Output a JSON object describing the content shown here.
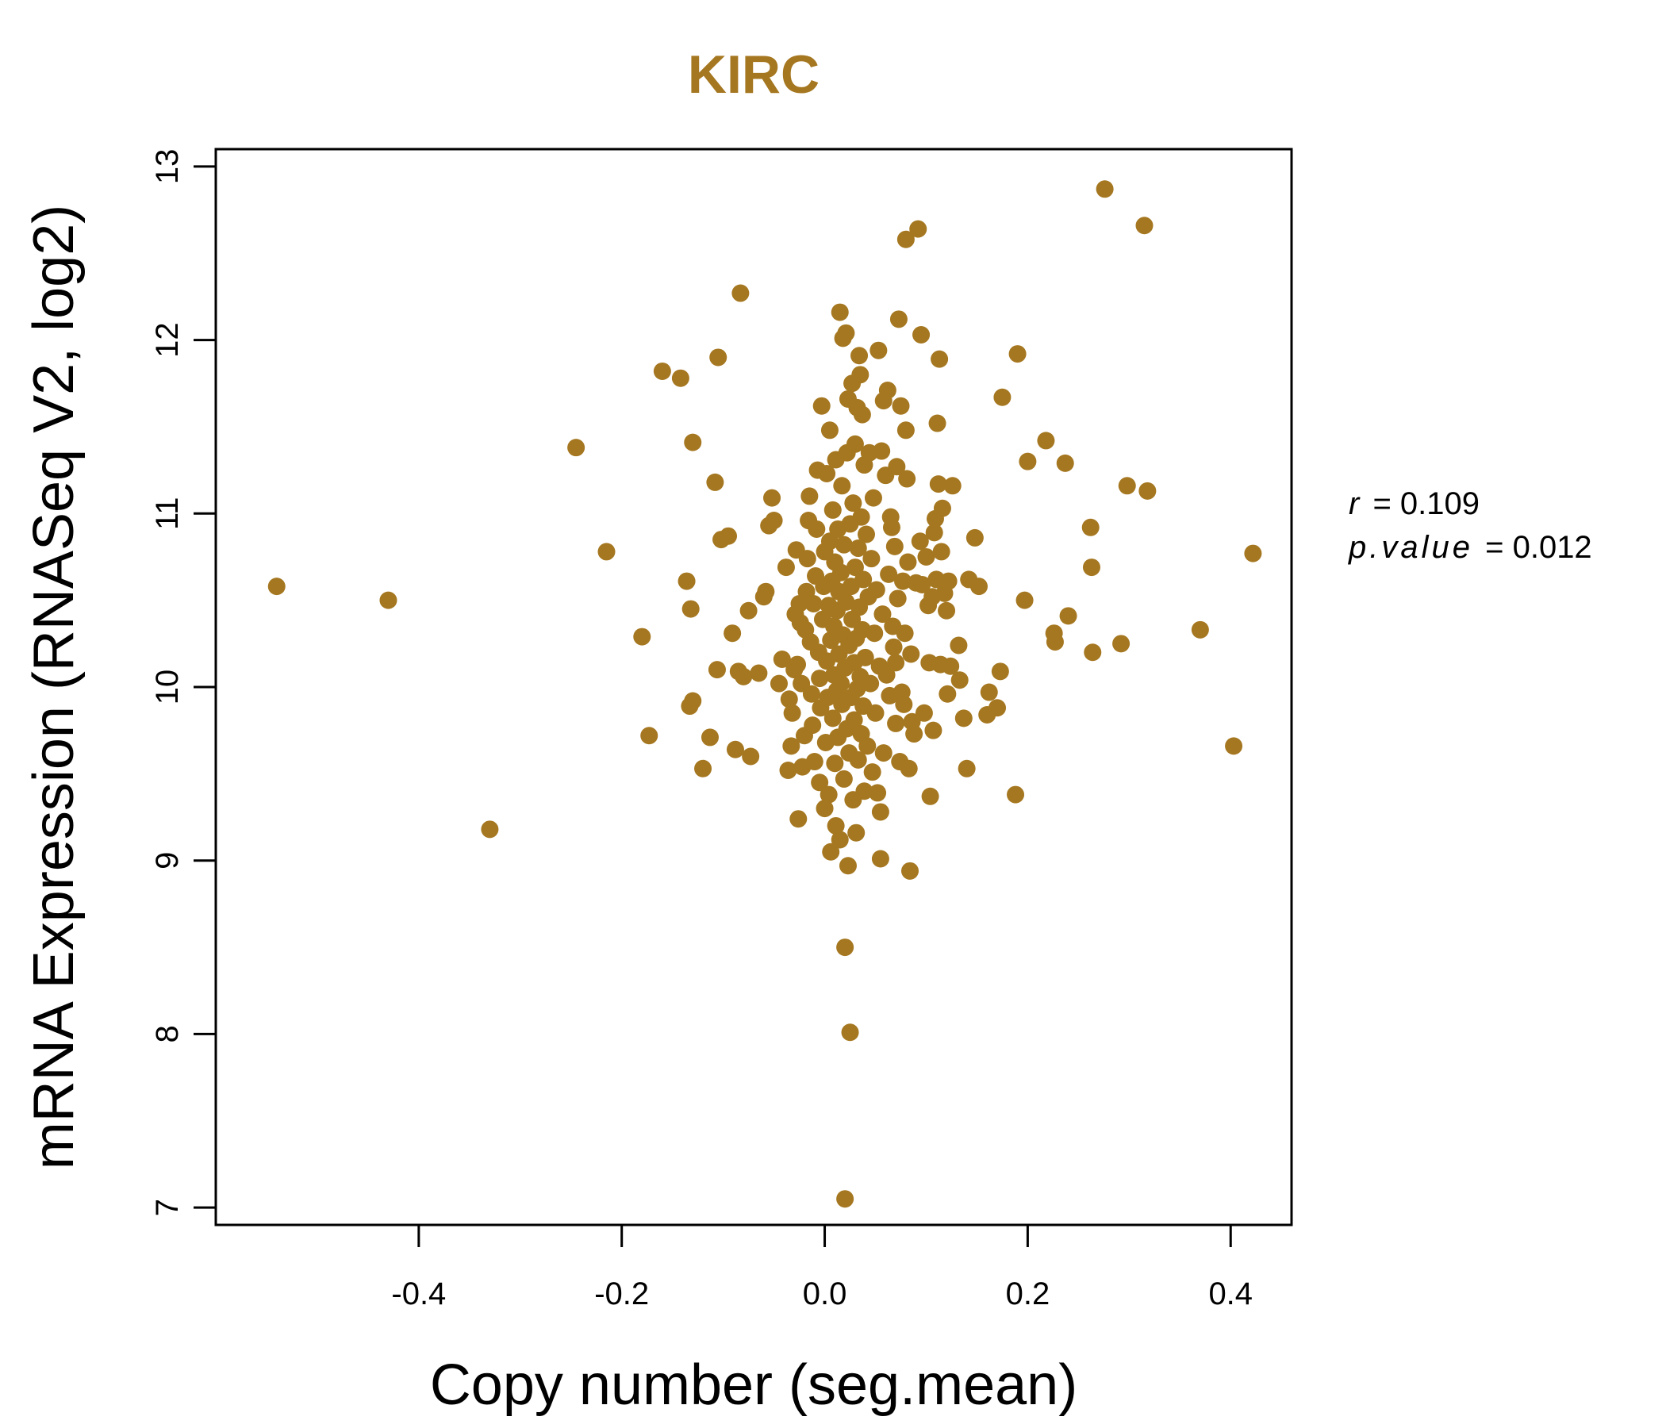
{
  "chart_data": {
    "type": "scatter",
    "title": "KIRC",
    "xlabel": "Copy number (seg.mean)",
    "ylabel": "mRNA Expression (RNASeq V2, log2)",
    "xlim": [
      -0.6,
      0.46
    ],
    "ylim": [
      6.9,
      13.1
    ],
    "x_ticks": [
      -0.4,
      -0.2,
      0.0,
      0.2,
      0.4
    ],
    "x_tick_labels": [
      "-0.4",
      "-0.2",
      "0.0",
      "0.2",
      "0.4"
    ],
    "y_ticks": [
      7,
      8,
      9,
      10,
      11,
      12,
      13
    ],
    "y_tick_labels": [
      "7",
      "8",
      "9",
      "10",
      "11",
      "12",
      "13"
    ],
    "grid": false,
    "point_color": "#A57720",
    "title_color": "#A57720",
    "stats": {
      "r_label": "r",
      "r_value": "= 0.109",
      "p_label": "p.value",
      "p_value": "= 0.012"
    },
    "points": [
      [
        -0.54,
        10.58
      ],
      [
        -0.43,
        10.5
      ],
      [
        -0.33,
        9.18
      ],
      [
        -0.245,
        11.38
      ],
      [
        -0.215,
        10.78
      ],
      [
        -0.18,
        10.29
      ],
      [
        -0.173,
        9.72
      ],
      [
        -0.16,
        11.82
      ],
      [
        -0.142,
        11.78
      ],
      [
        -0.136,
        10.61
      ],
      [
        -0.133,
        9.89
      ],
      [
        -0.132,
        10.45
      ],
      [
        -0.13,
        9.92
      ],
      [
        -0.13,
        11.41
      ],
      [
        -0.12,
        9.53
      ],
      [
        -0.113,
        9.71
      ],
      [
        -0.108,
        11.18
      ],
      [
        -0.106,
        10.1
      ],
      [
        -0.105,
        11.9
      ],
      [
        -0.102,
        10.85
      ],
      [
        -0.095,
        10.87
      ],
      [
        -0.091,
        10.31
      ],
      [
        -0.088,
        9.64
      ],
      [
        -0.085,
        10.09
      ],
      [
        -0.083,
        12.27
      ],
      [
        -0.08,
        10.06
      ],
      [
        -0.075,
        10.44
      ],
      [
        -0.073,
        9.6
      ],
      [
        -0.065,
        10.08
      ],
      [
        -0.06,
        10.52
      ],
      [
        -0.058,
        10.55
      ],
      [
        -0.055,
        10.93
      ],
      [
        -0.052,
        11.09
      ],
      [
        -0.05,
        10.96
      ],
      [
        -0.045,
        10.02
      ],
      [
        -0.042,
        10.16
      ],
      [
        -0.038,
        10.69
      ],
      [
        -0.036,
        9.52
      ],
      [
        -0.035,
        9.93
      ],
      [
        -0.032,
        9.85
      ],
      [
        -0.033,
        9.66
      ],
      [
        -0.03,
        10.1
      ],
      [
        -0.029,
        10.42
      ],
      [
        -0.028,
        10.79
      ],
      [
        -0.027,
        10.13
      ],
      [
        -0.026,
        9.24
      ],
      [
        -0.025,
        10.48
      ],
      [
        -0.024,
        10.37
      ],
      [
        -0.023,
        10.02
      ],
      [
        -0.022,
        9.54
      ],
      [
        -0.02,
        9.72
      ],
      [
        -0.019,
        10.33
      ],
      [
        -0.018,
        10.55
      ],
      [
        -0.017,
        10.74
      ],
      [
        -0.016,
        10.96
      ],
      [
        -0.015,
        11.1
      ],
      [
        -0.014,
        10.26
      ],
      [
        -0.013,
        9.96
      ],
      [
        -0.012,
        9.78
      ],
      [
        -0.011,
        10.48
      ],
      [
        -0.01,
        9.57
      ],
      [
        -0.009,
        10.64
      ],
      [
        -0.008,
        10.91
      ],
      [
        -0.007,
        11.25
      ],
      [
        -0.006,
        10.2
      ],
      [
        -0.005,
        9.45
      ],
      [
        -0.005,
        10.05
      ],
      [
        -0.004,
        9.88
      ],
      [
        -0.003,
        11.62
      ],
      [
        -0.002,
        10.39
      ],
      [
        -0.001,
        10.58
      ],
      [
        0.0,
        9.3
      ],
      [
        0.0,
        10.78
      ],
      [
        0.001,
        9.68
      ],
      [
        0.002,
        11.23
      ],
      [
        0.002,
        10.15
      ],
      [
        0.003,
        9.94
      ],
      [
        0.004,
        10.47
      ],
      [
        0.004,
        9.38
      ],
      [
        0.005,
        11.48
      ],
      [
        0.005,
        10.84
      ],
      [
        0.006,
        10.27
      ],
      [
        0.006,
        9.05
      ],
      [
        0.007,
        10.61
      ],
      [
        0.008,
        9.82
      ],
      [
        0.008,
        11.02
      ],
      [
        0.009,
        10.07
      ],
      [
        0.009,
        10.35
      ],
      [
        0.01,
        9.56
      ],
      [
        0.01,
        10.72
      ],
      [
        0.011,
        9.2
      ],
      [
        0.011,
        11.31
      ],
      [
        0.012,
        10.44
      ],
      [
        0.012,
        9.98
      ],
      [
        0.013,
        10.91
      ],
      [
        0.013,
        9.71
      ],
      [
        0.014,
        10.19
      ],
      [
        0.014,
        10.55
      ],
      [
        0.015,
        12.16
      ],
      [
        0.015,
        9.12
      ],
      [
        0.016,
        10.02
      ],
      [
        0.016,
        10.66
      ],
      [
        0.017,
        9.9
      ],
      [
        0.017,
        11.16
      ],
      [
        0.018,
        12.01
      ],
      [
        0.018,
        10.3
      ],
      [
        0.019,
        10.82
      ],
      [
        0.019,
        9.47
      ],
      [
        0.02,
        8.5
      ],
      [
        0.02,
        7.05
      ],
      [
        0.02,
        10.11
      ],
      [
        0.021,
        12.04
      ],
      [
        0.021,
        10.49
      ],
      [
        0.022,
        9.76
      ],
      [
        0.022,
        11.35
      ],
      [
        0.023,
        8.97
      ],
      [
        0.023,
        11.66
      ],
      [
        0.024,
        10.24
      ],
      [
        0.024,
        9.62
      ],
      [
        0.025,
        10.94
      ],
      [
        0.025,
        8.01
      ],
      [
        0.026,
        10.58
      ],
      [
        0.026,
        9.94
      ],
      [
        0.027,
        11.75
      ],
      [
        0.027,
        10.39
      ],
      [
        0.028,
        9.35
      ],
      [
        0.028,
        11.06
      ],
      [
        0.029,
        10.14
      ],
      [
        0.029,
        9.81
      ],
      [
        0.03,
        11.4
      ],
      [
        0.03,
        10.69
      ],
      [
        0.031,
        9.16
      ],
      [
        0.031,
        10.28
      ],
      [
        0.032,
        11.61
      ],
      [
        0.032,
        9.99
      ],
      [
        0.033,
        10.8
      ],
      [
        0.033,
        9.58
      ],
      [
        0.034,
        11.91
      ],
      [
        0.034,
        10.46
      ],
      [
        0.035,
        10.06
      ],
      [
        0.035,
        11.8
      ],
      [
        0.036,
        9.73
      ],
      [
        0.036,
        10.98
      ],
      [
        0.037,
        11.57
      ],
      [
        0.037,
        10.33
      ],
      [
        0.038,
        9.89
      ],
      [
        0.038,
        10.62
      ],
      [
        0.039,
        11.28
      ],
      [
        0.039,
        9.4
      ],
      [
        0.04,
        10.17
      ],
      [
        0.041,
        10.88
      ],
      [
        0.042,
        9.66
      ],
      [
        0.043,
        10.52
      ],
      [
        0.044,
        11.35
      ],
      [
        0.045,
        10.02
      ],
      [
        0.046,
        10.74
      ],
      [
        0.047,
        9.51
      ],
      [
        0.048,
        11.09
      ],
      [
        0.049,
        10.31
      ],
      [
        0.05,
        9.85
      ],
      [
        0.051,
        10.56
      ],
      [
        0.052,
        9.39
      ],
      [
        0.053,
        11.94
      ],
      [
        0.054,
        10.12
      ],
      [
        0.055,
        9.28
      ],
      [
        0.055,
        9.01
      ],
      [
        0.056,
        11.36
      ],
      [
        0.057,
        10.42
      ],
      [
        0.058,
        11.65
      ],
      [
        0.058,
        9.62
      ],
      [
        0.06,
        11.22
      ],
      [
        0.061,
        10.07
      ],
      [
        0.062,
        11.71
      ],
      [
        0.063,
        10.65
      ],
      [
        0.064,
        9.95
      ],
      [
        0.065,
        10.98
      ],
      [
        0.066,
        10.92
      ],
      [
        0.067,
        10.35
      ],
      [
        0.068,
        10.23
      ],
      [
        0.069,
        10.81
      ],
      [
        0.07,
        10.14
      ],
      [
        0.07,
        9.79
      ],
      [
        0.071,
        11.27
      ],
      [
        0.072,
        10.51
      ],
      [
        0.073,
        12.12
      ],
      [
        0.074,
        9.57
      ],
      [
        0.075,
        11.62
      ],
      [
        0.076,
        9.97
      ],
      [
        0.077,
        10.61
      ],
      [
        0.078,
        9.9
      ],
      [
        0.079,
        10.31
      ],
      [
        0.08,
        12.58
      ],
      [
        0.08,
        11.48
      ],
      [
        0.081,
        11.2
      ],
      [
        0.082,
        10.72
      ],
      [
        0.083,
        9.53
      ],
      [
        0.084,
        8.94
      ],
      [
        0.085,
        10.19
      ],
      [
        0.086,
        9.8
      ],
      [
        0.088,
        9.73
      ],
      [
        0.09,
        10.6
      ],
      [
        0.092,
        12.64
      ],
      [
        0.094,
        10.84
      ],
      [
        0.095,
        12.03
      ],
      [
        0.096,
        10.59
      ],
      [
        0.098,
        9.85
      ],
      [
        0.1,
        10.75
      ],
      [
        0.102,
        10.47
      ],
      [
        0.103,
        10.14
      ],
      [
        0.104,
        9.37
      ],
      [
        0.106,
        10.52
      ],
      [
        0.107,
        9.75
      ],
      [
        0.108,
        10.89
      ],
      [
        0.109,
        10.97
      ],
      [
        0.11,
        10.62
      ],
      [
        0.111,
        11.52
      ],
      [
        0.112,
        11.17
      ],
      [
        0.113,
        11.89
      ],
      [
        0.114,
        10.13
      ],
      [
        0.115,
        10.78
      ],
      [
        0.116,
        11.03
      ],
      [
        0.118,
        10.54
      ],
      [
        0.12,
        10.44
      ],
      [
        0.121,
        9.96
      ],
      [
        0.122,
        10.61
      ],
      [
        0.124,
        10.12
      ],
      [
        0.126,
        11.16
      ],
      [
        0.132,
        10.24
      ],
      [
        0.133,
        10.04
      ],
      [
        0.137,
        9.82
      ],
      [
        0.14,
        9.53
      ],
      [
        0.142,
        10.62
      ],
      [
        0.148,
        10.86
      ],
      [
        0.152,
        10.58
      ],
      [
        0.16,
        9.84
      ],
      [
        0.162,
        9.97
      ],
      [
        0.17,
        9.88
      ],
      [
        0.173,
        10.09
      ],
      [
        0.175,
        11.67
      ],
      [
        0.188,
        9.38
      ],
      [
        0.19,
        11.92
      ],
      [
        0.197,
        10.5
      ],
      [
        0.2,
        11.3
      ],
      [
        0.218,
        11.42
      ],
      [
        0.226,
        10.31
      ],
      [
        0.227,
        10.26
      ],
      [
        0.237,
        11.29
      ],
      [
        0.24,
        10.41
      ],
      [
        0.262,
        10.92
      ],
      [
        0.263,
        10.69
      ],
      [
        0.264,
        10.2
      ],
      [
        0.276,
        12.87
      ],
      [
        0.292,
        10.25
      ],
      [
        0.298,
        11.16
      ],
      [
        0.315,
        12.66
      ],
      [
        0.318,
        11.13
      ],
      [
        0.37,
        10.33
      ],
      [
        0.403,
        9.66
      ],
      [
        0.422,
        10.77
      ]
    ]
  }
}
